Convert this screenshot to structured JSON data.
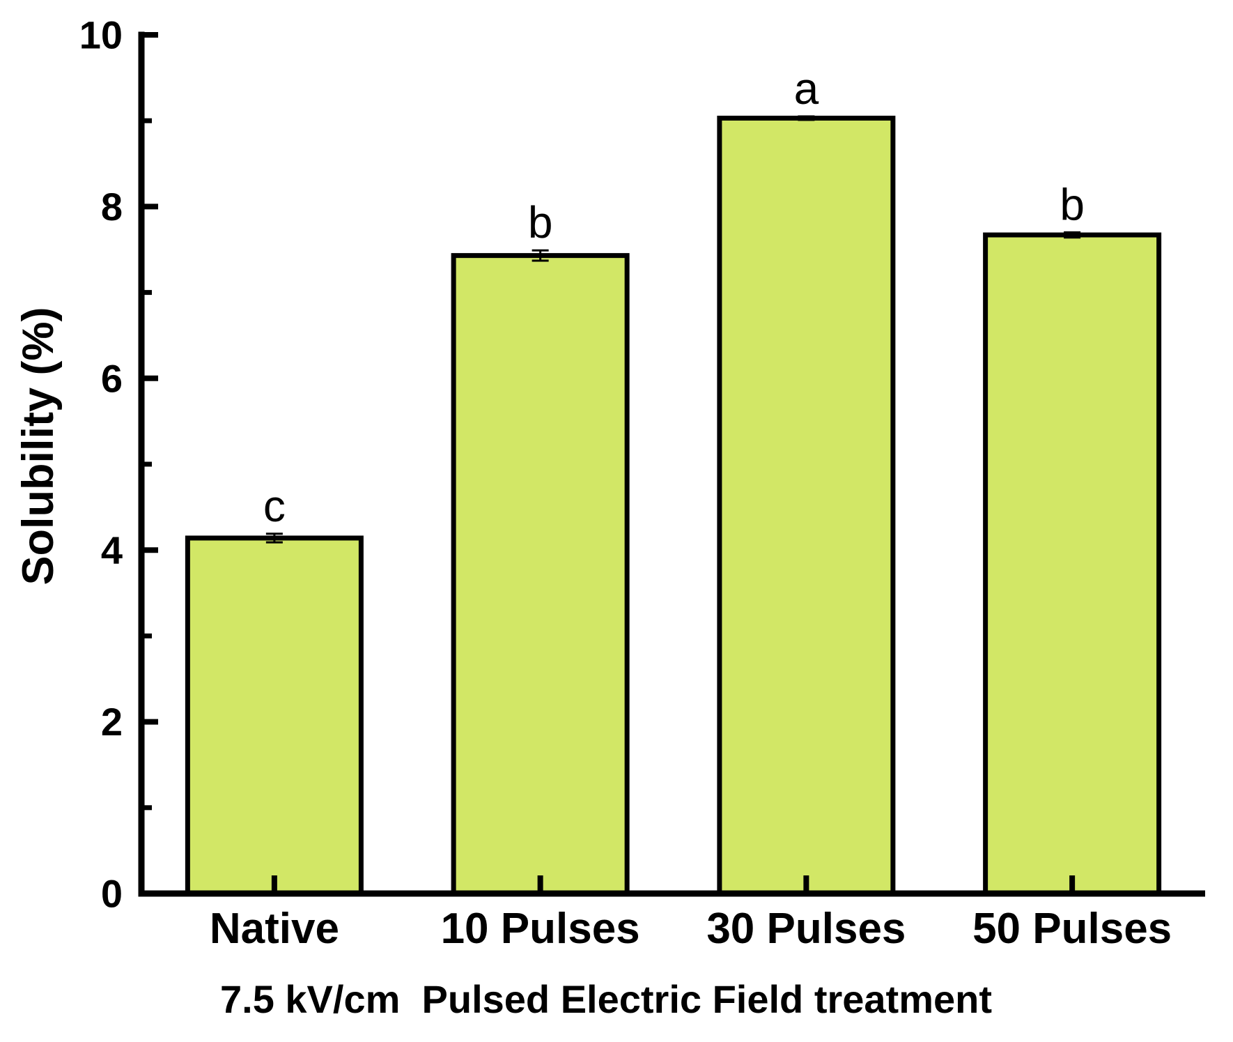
{
  "figure": {
    "background": "#ffffff"
  },
  "chart_data": {
    "type": "bar",
    "title": "",
    "categories": [
      "Native",
      "10 Pulses",
      "30 Pulses",
      "50 Pulses"
    ],
    "values": [
      4.14,
      7.43,
      9.03,
      7.67
    ],
    "error_bars": [
      0.05,
      0.06,
      0.02,
      0.03
    ],
    "significance_letters": [
      "c",
      "b",
      "a",
      "b"
    ],
    "xlabel": "7.5 kV/cm  Pulsed Electric Field treatment",
    "ylabel": "Solubility (%)",
    "ylim": [
      0,
      10
    ],
    "y_major_ticks": [
      0,
      2,
      4,
      6,
      8,
      10
    ],
    "y_minor_ticks": [
      1,
      3,
      5,
      7,
      9
    ],
    "grid": false,
    "legend_position": "none",
    "bar_fill_color": "#d2e766",
    "bar_border_color": "#000000",
    "axis_color": "#000000",
    "text_color": "#000000"
  }
}
